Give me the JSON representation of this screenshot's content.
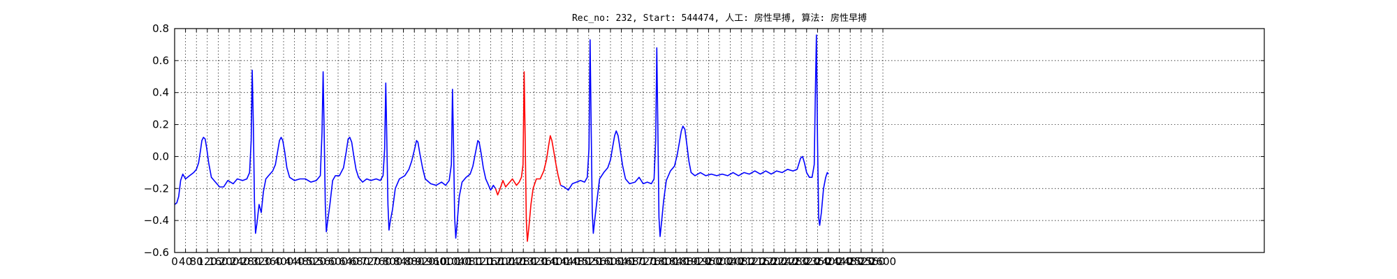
{
  "chart_data": {
    "type": "line",
    "title": "Rec_no: 232, Start: 544474, 人工: 房性早搏, 算法: 房性早搏",
    "xlabel": "",
    "ylabel": "",
    "xlim": [
      0,
      4000
    ],
    "ylim": [
      -0.6,
      0.8
    ],
    "grid": true,
    "x_ticks": [
      0,
      40,
      80,
      120,
      160,
      200,
      240,
      280,
      320,
      360,
      400,
      440,
      480,
      520,
      560,
      600,
      640,
      680,
      720,
      760,
      800,
      840,
      880,
      920,
      960,
      1000,
      1040,
      1080,
      1120,
      1160,
      1200,
      1240,
      1280,
      1320,
      1360,
      1400,
      1440,
      1480,
      1520,
      1560,
      1600,
      1640,
      1680,
      1720,
      1760,
      1800,
      1840,
      1880,
      1920,
      1960,
      2000,
      2040,
      2080,
      2120,
      2160,
      2200,
      2240,
      2280,
      2320,
      2360,
      2400,
      2440,
      2480,
      2520,
      2560,
      2600
    ],
    "x_tick_labels": [
      "0",
      "40",
      "80",
      "120",
      "160",
      "200",
      "240",
      "280",
      "320",
      "360",
      "400",
      "440",
      "480",
      "520",
      "560",
      "600",
      "640",
      "680",
      "720",
      "760",
      "800",
      "840",
      "880",
      "920",
      "960",
      "1000",
      "1040",
      "1080",
      "1120",
      "1160",
      "1200",
      "1240",
      "1280",
      "1320",
      "1360",
      "1400",
      "1440",
      "1480",
      "1520",
      "1560",
      "1600",
      "1640",
      "1680",
      "1720",
      "1760",
      "1800",
      "1840",
      "1880",
      "1920",
      "1960",
      "2000",
      "2040",
      "2080",
      "2120",
      "2160",
      "2200",
      "2240",
      "2280",
      "2320",
      "2360",
      "2400",
      "2440",
      "2480",
      "2520",
      "2560",
      "2600"
    ],
    "y_ticks": [
      -0.6,
      -0.4,
      -0.2,
      0.0,
      0.2,
      0.4,
      0.6,
      0.8
    ],
    "y_tick_labels": [
      "−0.6",
      "−0.4",
      "−0.2",
      "0.0",
      "0.2",
      "0.4",
      "0.6",
      "0.8"
    ],
    "segments": [
      {
        "color": "#0000ff",
        "points": [
          [
            0,
            -0.3
          ],
          [
            8,
            -0.29
          ],
          [
            15,
            -0.25
          ],
          [
            22,
            -0.15
          ],
          [
            30,
            -0.11
          ],
          [
            40,
            -0.14
          ],
          [
            55,
            -0.12
          ],
          [
            70,
            -0.1
          ],
          [
            80,
            -0.08
          ],
          [
            88,
            -0.04
          ],
          [
            95,
            0.04
          ],
          [
            100,
            0.1
          ],
          [
            106,
            0.12
          ],
          [
            112,
            0.11
          ],
          [
            118,
            0.05
          ],
          [
            125,
            -0.04
          ],
          [
            135,
            -0.13
          ],
          [
            150,
            -0.16
          ],
          [
            165,
            -0.19
          ],
          [
            180,
            -0.19
          ],
          [
            195,
            -0.15
          ],
          [
            215,
            -0.17
          ],
          [
            230,
            -0.14
          ],
          [
            250,
            -0.15
          ],
          [
            265,
            -0.14
          ],
          [
            275,
            -0.1
          ],
          [
            281,
            0.1
          ],
          [
            285,
            0.54
          ],
          [
            289,
            0.2
          ],
          [
            293,
            -0.28
          ],
          [
            297,
            -0.48
          ],
          [
            302,
            -0.42
          ],
          [
            310,
            -0.3
          ],
          [
            318,
            -0.35
          ],
          [
            326,
            -0.22
          ],
          [
            335,
            -0.14
          ],
          [
            345,
            -0.12
          ],
          [
            360,
            -0.09
          ],
          [
            370,
            -0.05
          ],
          [
            378,
            0.03
          ],
          [
            385,
            0.1
          ],
          [
            391,
            0.12
          ],
          [
            397,
            0.1
          ],
          [
            404,
            0.03
          ],
          [
            412,
            -0.07
          ],
          [
            422,
            -0.13
          ],
          [
            440,
            -0.15
          ],
          [
            460,
            -0.14
          ],
          [
            480,
            -0.14
          ],
          [
            500,
            -0.16
          ],
          [
            520,
            -0.15
          ],
          [
            535,
            -0.12
          ],
          [
            541,
            0.15
          ],
          [
            545,
            0.53
          ],
          [
            549,
            0.15
          ],
          [
            553,
            -0.3
          ],
          [
            557,
            -0.47
          ],
          [
            562,
            -0.4
          ],
          [
            570,
            -0.3
          ],
          [
            580,
            -0.15
          ],
          [
            590,
            -0.12
          ],
          [
            605,
            -0.12
          ],
          [
            620,
            -0.07
          ],
          [
            630,
            0.03
          ],
          [
            637,
            0.11
          ],
          [
            643,
            0.12
          ],
          [
            650,
            0.09
          ],
          [
            658,
            0.0
          ],
          [
            666,
            -0.08
          ],
          [
            675,
            -0.13
          ],
          [
            690,
            -0.16
          ],
          [
            705,
            -0.14
          ],
          [
            720,
            -0.15
          ],
          [
            740,
            -0.14
          ],
          [
            755,
            -0.15
          ],
          [
            765,
            -0.12
          ],
          [
            771,
            0.05
          ],
          [
            775,
            0.46
          ],
          [
            779,
            0.1
          ],
          [
            783,
            -0.3
          ],
          [
            787,
            -0.46
          ],
          [
            792,
            -0.4
          ],
          [
            800,
            -0.33
          ],
          [
            810,
            -0.2
          ],
          [
            825,
            -0.14
          ],
          [
            845,
            -0.12
          ],
          [
            860,
            -0.08
          ],
          [
            870,
            -0.03
          ],
          [
            880,
            0.04
          ],
          [
            888,
            0.1
          ],
          [
            893,
            0.09
          ],
          [
            900,
            0.02
          ],
          [
            910,
            -0.07
          ],
          [
            920,
            -0.14
          ],
          [
            940,
            -0.17
          ],
          [
            960,
            -0.18
          ],
          [
            980,
            -0.16
          ],
          [
            995,
            -0.18
          ],
          [
            1008,
            -0.15
          ],
          [
            1016,
            -0.05
          ],
          [
            1020,
            0.42
          ],
          [
            1024,
            0.05
          ],
          [
            1028,
            -0.38
          ],
          [
            1032,
            -0.51
          ],
          [
            1037,
            -0.42
          ],
          [
            1045,
            -0.25
          ],
          [
            1055,
            -0.16
          ],
          [
            1070,
            -0.13
          ],
          [
            1085,
            -0.11
          ],
          [
            1095,
            -0.06
          ],
          [
            1105,
            0.03
          ],
          [
            1113,
            0.1
          ],
          [
            1118,
            0.09
          ],
          [
            1125,
            0.02
          ],
          [
            1133,
            -0.07
          ],
          [
            1142,
            -0.14
          ],
          [
            1150,
            -0.17
          ],
          [
            1160,
            -0.21
          ],
          [
            1170,
            -0.18
          ],
          [
            1178,
            -0.2
          ]
        ]
      },
      {
        "color": "#ff0000",
        "points": [
          [
            1178,
            -0.2
          ],
          [
            1186,
            -0.24
          ],
          [
            1195,
            -0.2
          ],
          [
            1205,
            -0.15
          ],
          [
            1215,
            -0.19
          ],
          [
            1225,
            -0.17
          ],
          [
            1240,
            -0.14
          ],
          [
            1255,
            -0.18
          ],
          [
            1265,
            -0.16
          ],
          [
            1273,
            -0.13
          ],
          [
            1279,
            -0.05
          ],
          [
            1283,
            0.53
          ],
          [
            1287,
            0.1
          ],
          [
            1291,
            -0.4
          ],
          [
            1295,
            -0.53
          ],
          [
            1300,
            -0.45
          ],
          [
            1308,
            -0.3
          ],
          [
            1316,
            -0.2
          ],
          [
            1328,
            -0.14
          ],
          [
            1342,
            -0.14
          ],
          [
            1355,
            -0.09
          ],
          [
            1365,
            -0.02
          ],
          [
            1373,
            0.07
          ],
          [
            1379,
            0.13
          ],
          [
            1385,
            0.1
          ],
          [
            1392,
            0.03
          ],
          [
            1400,
            -0.05
          ],
          [
            1408,
            -0.12
          ],
          [
            1417,
            -0.18
          ]
        ]
      },
      {
        "color": "#0000ff",
        "points": [
          [
            1417,
            -0.18
          ],
          [
            1430,
            -0.19
          ],
          [
            1445,
            -0.21
          ],
          [
            1460,
            -0.17
          ],
          [
            1475,
            -0.16
          ],
          [
            1490,
            -0.15
          ],
          [
            1505,
            -0.16
          ],
          [
            1515,
            -0.13
          ],
          [
            1521,
            0.05
          ],
          [
            1525,
            0.73
          ],
          [
            1529,
            0.2
          ],
          [
            1533,
            -0.35
          ],
          [
            1537,
            -0.48
          ],
          [
            1542,
            -0.4
          ],
          [
            1550,
            -0.28
          ],
          [
            1560,
            -0.14
          ],
          [
            1575,
            -0.1
          ],
          [
            1590,
            -0.07
          ],
          [
            1600,
            -0.02
          ],
          [
            1608,
            0.06
          ],
          [
            1615,
            0.13
          ],
          [
            1621,
            0.16
          ],
          [
            1628,
            0.13
          ],
          [
            1636,
            0.04
          ],
          [
            1645,
            -0.06
          ],
          [
            1655,
            -0.14
          ],
          [
            1670,
            -0.17
          ],
          [
            1690,
            -0.16
          ],
          [
            1705,
            -0.13
          ],
          [
            1720,
            -0.17
          ],
          [
            1735,
            -0.16
          ],
          [
            1750,
            -0.17
          ],
          [
            1760,
            -0.14
          ],
          [
            1766,
            0.1
          ],
          [
            1770,
            0.68
          ],
          [
            1774,
            0.15
          ],
          [
            1778,
            -0.38
          ],
          [
            1782,
            -0.5
          ],
          [
            1787,
            -0.42
          ],
          [
            1795,
            -0.28
          ],
          [
            1805,
            -0.15
          ],
          [
            1820,
            -0.09
          ],
          [
            1835,
            -0.06
          ],
          [
            1845,
            0.01
          ],
          [
            1853,
            0.09
          ],
          [
            1860,
            0.16
          ],
          [
            1866,
            0.19
          ],
          [
            1873,
            0.17
          ],
          [
            1880,
            0.08
          ],
          [
            1888,
            -0.03
          ],
          [
            1896,
            -0.1
          ],
          [
            1910,
            -0.12
          ],
          [
            1930,
            -0.1
          ],
          [
            1950,
            -0.12
          ],
          [
            1970,
            -0.11
          ],
          [
            1990,
            -0.12
          ],
          [
            2010,
            -0.11
          ],
          [
            2030,
            -0.12
          ],
          [
            2050,
            -0.1
          ],
          [
            2070,
            -0.12
          ],
          [
            2090,
            -0.1
          ],
          [
            2110,
            -0.11
          ],
          [
            2130,
            -0.09
          ],
          [
            2150,
            -0.11
          ],
          [
            2170,
            -0.09
          ],
          [
            2190,
            -0.11
          ],
          [
            2210,
            -0.09
          ],
          [
            2230,
            -0.1
          ],
          [
            2250,
            -0.08
          ],
          [
            2270,
            -0.09
          ],
          [
            2285,
            -0.08
          ],
          [
            2298,
            -0.01
          ],
          [
            2305,
            0.0
          ],
          [
            2312,
            -0.04
          ],
          [
            2320,
            -0.1
          ],
          [
            2330,
            -0.13
          ],
          [
            2340,
            -0.13
          ],
          [
            2348,
            -0.05
          ],
          [
            2352,
            0.4
          ],
          [
            2356,
            0.76
          ],
          [
            2360,
            0.1
          ],
          [
            2364,
            -0.38
          ],
          [
            2368,
            -0.43
          ],
          [
            2374,
            -0.35
          ],
          [
            2382,
            -0.2
          ],
          [
            2390,
            -0.13
          ],
          [
            2396,
            -0.1
          ],
          [
            2400,
            -0.11
          ]
        ]
      }
    ]
  }
}
